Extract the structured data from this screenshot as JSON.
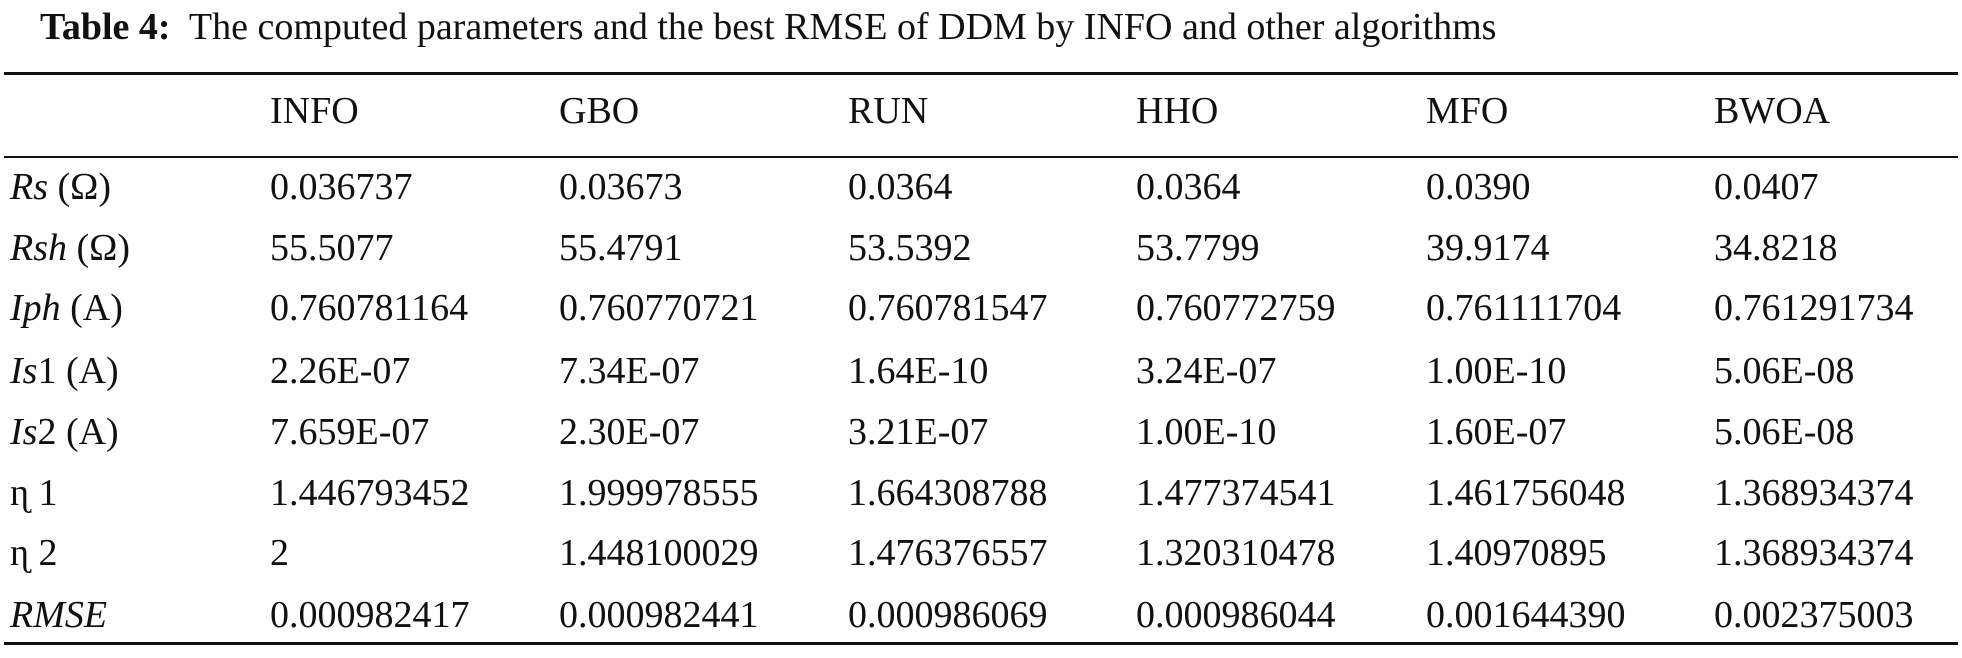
{
  "table": {
    "caption": {
      "label": "Table 4:",
      "text": "  The computed parameters and the best RMSE of DDM by INFO and other algorithms"
    },
    "columns": [
      "INFO",
      "GBO",
      "RUN",
      "HHO",
      "MFO",
      "BWOA"
    ],
    "rows": [
      {
        "label": [
          {
            "text": "Rs",
            "italic": true
          },
          {
            "text": " (Ω)",
            "italic": false
          }
        ],
        "values": [
          "0.036737",
          "0.03673",
          "0.0364",
          "0.0364",
          "0.0390",
          "0.0407"
        ]
      },
      {
        "label": [
          {
            "text": "Rsh",
            "italic": true
          },
          {
            "text": " (Ω)",
            "italic": false
          }
        ],
        "values": [
          "55.5077",
          "55.4791",
          "53.5392",
          "53.7799",
          "39.9174",
          "34.8218"
        ]
      },
      {
        "label": [
          {
            "text": "Iph",
            "italic": true
          },
          {
            "text": " (A)",
            "italic": false
          }
        ],
        "values": [
          "0.760781164",
          "0.760770721",
          "0.760781547",
          "0.760772759",
          "0.761111704",
          "0.761291734"
        ]
      },
      {
        "label": [
          {
            "text": "Is",
            "italic": true
          },
          {
            "text": "1 (A)",
            "italic": false
          }
        ],
        "values": [
          "2.26E-07",
          "7.34E-07",
          "1.64E-10",
          "3.24E-07",
          "1.00E-10",
          "5.06E-08"
        ]
      },
      {
        "label": [
          {
            "text": "Is",
            "italic": true
          },
          {
            "text": "2 (A)",
            "italic": false
          }
        ],
        "values": [
          "7.659E-07",
          "2.30E-07",
          "3.21E-07",
          "1.00E-10",
          "1.60E-07",
          "5.06E-08"
        ]
      },
      {
        "label": [
          {
            "text": "ɳ 1",
            "italic": false
          }
        ],
        "values": [
          "1.446793452",
          "1.999978555",
          "1.664308788",
          "1.477374541",
          "1.461756048",
          "1.368934374"
        ]
      },
      {
        "label": [
          {
            "text": "ɳ 2",
            "italic": false
          }
        ],
        "values": [
          "2",
          "1.448100029",
          "1.476376557",
          "1.320310478",
          "1.40970895",
          "1.368934374"
        ]
      },
      {
        "label": [
          {
            "text": "RMSE",
            "italic": true
          }
        ],
        "values": [
          "0.000982417",
          "0.000982441",
          "0.000986069",
          "0.000986044",
          "0.001644390",
          "0.002375003"
        ]
      }
    ]
  }
}
